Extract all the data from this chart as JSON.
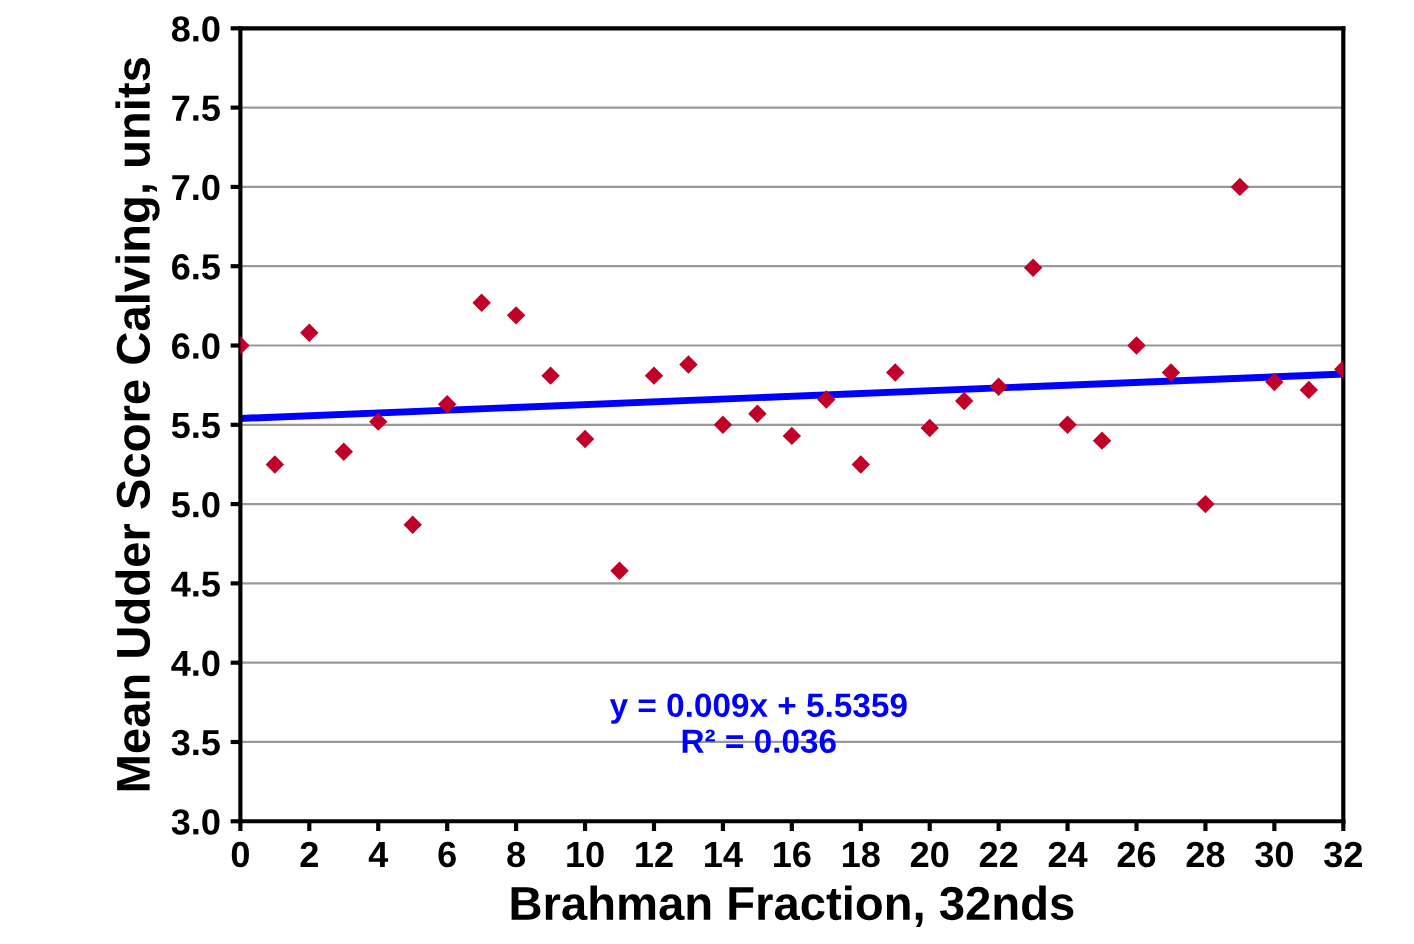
{
  "chart_data": {
    "type": "scatter",
    "xlabel": "Brahman Fraction, 32nds",
    "ylabel": "Mean Udder Score Calving, units",
    "grid": "y",
    "xlim": [
      0,
      32
    ],
    "xticks": [
      0,
      2,
      4,
      6,
      8,
      10,
      12,
      14,
      16,
      18,
      20,
      22,
      24,
      26,
      28,
      30,
      32
    ],
    "ylim": [
      3.0,
      8.0
    ],
    "yticks": [
      {
        "value": 3.0,
        "label": "3.0"
      },
      {
        "value": 3.5,
        "label": "3.5"
      },
      {
        "value": 4.0,
        "label": "4.0"
      },
      {
        "value": 4.5,
        "label": "4.5"
      },
      {
        "value": 5.0,
        "label": "5.0"
      },
      {
        "value": 5.5,
        "label": "5.5"
      },
      {
        "value": 6.0,
        "label": "6.0"
      },
      {
        "value": 6.5,
        "label": "6.5"
      },
      {
        "value": 7.0,
        "label": "7.0"
      },
      {
        "value": 7.5,
        "label": "7.5"
      },
      {
        "value": 8.0,
        "label": "8.0"
      }
    ],
    "series": [
      {
        "marker": "diamond",
        "color": "#c00028",
        "x": [
          0,
          1,
          2,
          3,
          4,
          5,
          6,
          7,
          8,
          9,
          10,
          11,
          12,
          13,
          14,
          15,
          16,
          17,
          18,
          19,
          20,
          21,
          22,
          23,
          24,
          25,
          26,
          27,
          28,
          29,
          30,
          31,
          32
        ],
        "values": [
          6.0,
          5.25,
          6.08,
          5.33,
          5.52,
          4.87,
          5.63,
          6.27,
          6.19,
          5.81,
          5.41,
          4.58,
          5.81,
          5.88,
          5.5,
          5.57,
          5.43,
          5.66,
          5.25,
          5.83,
          5.48,
          5.65,
          5.74,
          6.49,
          5.5,
          5.4,
          6.0,
          5.83,
          5.0,
          7.0,
          5.77,
          5.72,
          5.85
        ]
      },
      {
        "type": "line",
        "color": "#0000ff",
        "x": [
          0,
          32
        ],
        "values": [
          5.54,
          5.82
        ]
      }
    ],
    "annotations": [
      "y = 0.009x + 5.5359\nR² = 0.036"
    ]
  }
}
